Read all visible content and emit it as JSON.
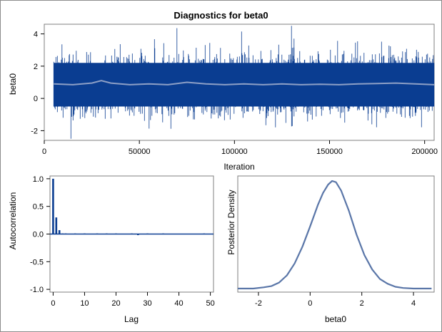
{
  "chart_data": [
    {
      "panel": "trace",
      "type": "line",
      "title": "Diagnostics for beta0",
      "xlabel": "Iteration",
      "ylabel": "beta0",
      "xlim": [
        0,
        205000
      ],
      "ylim": [
        -2.6,
        4.6
      ],
      "xticks": [
        0,
        50000,
        100000,
        150000,
        200000
      ],
      "yticks": [
        -2,
        0,
        2,
        4
      ],
      "series": [
        {
          "style": "trace",
          "x_start": 5001,
          "x_end": 205000,
          "mean": 0.85,
          "band_low": -0.5,
          "band_high": 2.2,
          "min": -2.5,
          "max": 4.5,
          "color": "#0a3d91"
        },
        {
          "style": "smoothed",
          "x": [
            5000,
            15000,
            25000,
            30000,
            35000,
            45000,
            55000,
            65000,
            75000,
            85000,
            95000,
            105000,
            115000,
            125000,
            135000,
            145000,
            155000,
            165000,
            175000,
            185000,
            195000,
            205000
          ],
          "y": [
            0.9,
            0.85,
            0.95,
            1.1,
            0.95,
            0.85,
            0.9,
            0.85,
            1.0,
            0.9,
            0.85,
            0.9,
            0.85,
            0.9,
            0.85,
            0.88,
            0.85,
            0.9,
            0.92,
            0.95,
            0.9,
            0.85
          ],
          "color": "#8ea0c6"
        }
      ]
    },
    {
      "panel": "autocorrelation",
      "type": "bar",
      "xlabel": "Lag",
      "ylabel": "Autocorrelation",
      "xlim": [
        -1,
        51
      ],
      "ylim": [
        -1.05,
        1.05
      ],
      "xticks": [
        0,
        10,
        20,
        30,
        40,
        50
      ],
      "yticks": [
        -1.0,
        -0.5,
        0.0,
        0.5,
        1.0
      ],
      "x": [
        0,
        1,
        2,
        3,
        4,
        5,
        6,
        7,
        8,
        9,
        10,
        11,
        12,
        13,
        14,
        15,
        16,
        17,
        18,
        19,
        20,
        21,
        22,
        23,
        24,
        25,
        26,
        27,
        28,
        29,
        30,
        31,
        32,
        33,
        34,
        35,
        36,
        37,
        38,
        39,
        40,
        41,
        42,
        43,
        44,
        45,
        46,
        47,
        48,
        49,
        50
      ],
      "values": [
        1.0,
        0.3,
        0.07,
        0.01,
        0.01,
        0.0,
        0.0,
        0.01,
        0.0,
        0.0,
        0.01,
        0.0,
        0.0,
        0.0,
        0.01,
        0.0,
        0.0,
        0.01,
        0.0,
        0.0,
        0.01,
        0.0,
        0.0,
        0.0,
        0.0,
        0.01,
        0.0,
        -0.02,
        0.0,
        0.0,
        0.01,
        0.0,
        0.0,
        0.0,
        0.0,
        0.01,
        0.0,
        0.0,
        0.0,
        0.0,
        0.0,
        0.0,
        0.0,
        0.0,
        0.0,
        0.0,
        0.0,
        0.0,
        0.01,
        0.0,
        0.0
      ],
      "color": "#0a3d91"
    },
    {
      "panel": "density",
      "type": "line",
      "xlabel": "beta0",
      "ylabel": "Posterior Density",
      "xlim": [
        -2.8,
        4.8
      ],
      "xticks": [
        -2,
        0,
        2,
        4
      ],
      "x": [
        -2.8,
        -2.2,
        -1.8,
        -1.5,
        -1.2,
        -0.9,
        -0.6,
        -0.3,
        0.0,
        0.3,
        0.5,
        0.7,
        0.85,
        1.0,
        1.2,
        1.5,
        1.8,
        2.1,
        2.4,
        2.7,
        3.0,
        3.3,
        3.6,
        4.0,
        4.4,
        4.7
      ],
      "y": [
        0.0,
        0.0,
        0.01,
        0.02,
        0.05,
        0.11,
        0.21,
        0.35,
        0.52,
        0.7,
        0.8,
        0.87,
        0.9,
        0.89,
        0.82,
        0.65,
        0.45,
        0.28,
        0.16,
        0.08,
        0.04,
        0.015,
        0.005,
        0.0,
        0.0,
        0.0
      ],
      "color": "#5a76a8"
    }
  ]
}
